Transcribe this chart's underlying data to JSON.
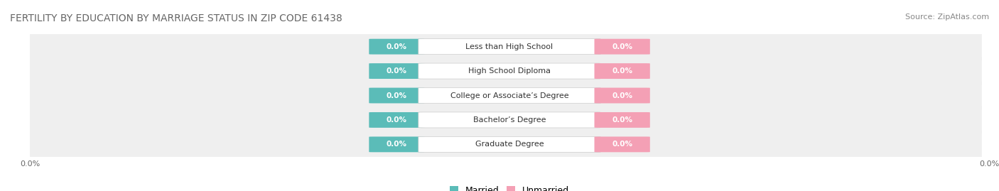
{
  "title": "FERTILITY BY EDUCATION BY MARRIAGE STATUS IN ZIP CODE 61438",
  "source": "Source: ZipAtlas.com",
  "categories": [
    "Less than High School",
    "High School Diploma",
    "College or Associate’s Degree",
    "Bachelor’s Degree",
    "Graduate Degree"
  ],
  "married_values": [
    0.0,
    0.0,
    0.0,
    0.0,
    0.0
  ],
  "unmarried_values": [
    0.0,
    0.0,
    0.0,
    0.0,
    0.0
  ],
  "married_color": "#5bbcb8",
  "unmarried_color": "#f4a0b5",
  "row_bg_color": "#efefef",
  "title_fontsize": 10,
  "source_fontsize": 8,
  "legend_fontsize": 9,
  "tick_fontsize": 8,
  "category_fontsize": 8,
  "value_fontsize": 7.5,
  "xlim": [
    -1.0,
    1.0
  ],
  "figsize": [
    14.06,
    2.69
  ],
  "dpi": 100
}
